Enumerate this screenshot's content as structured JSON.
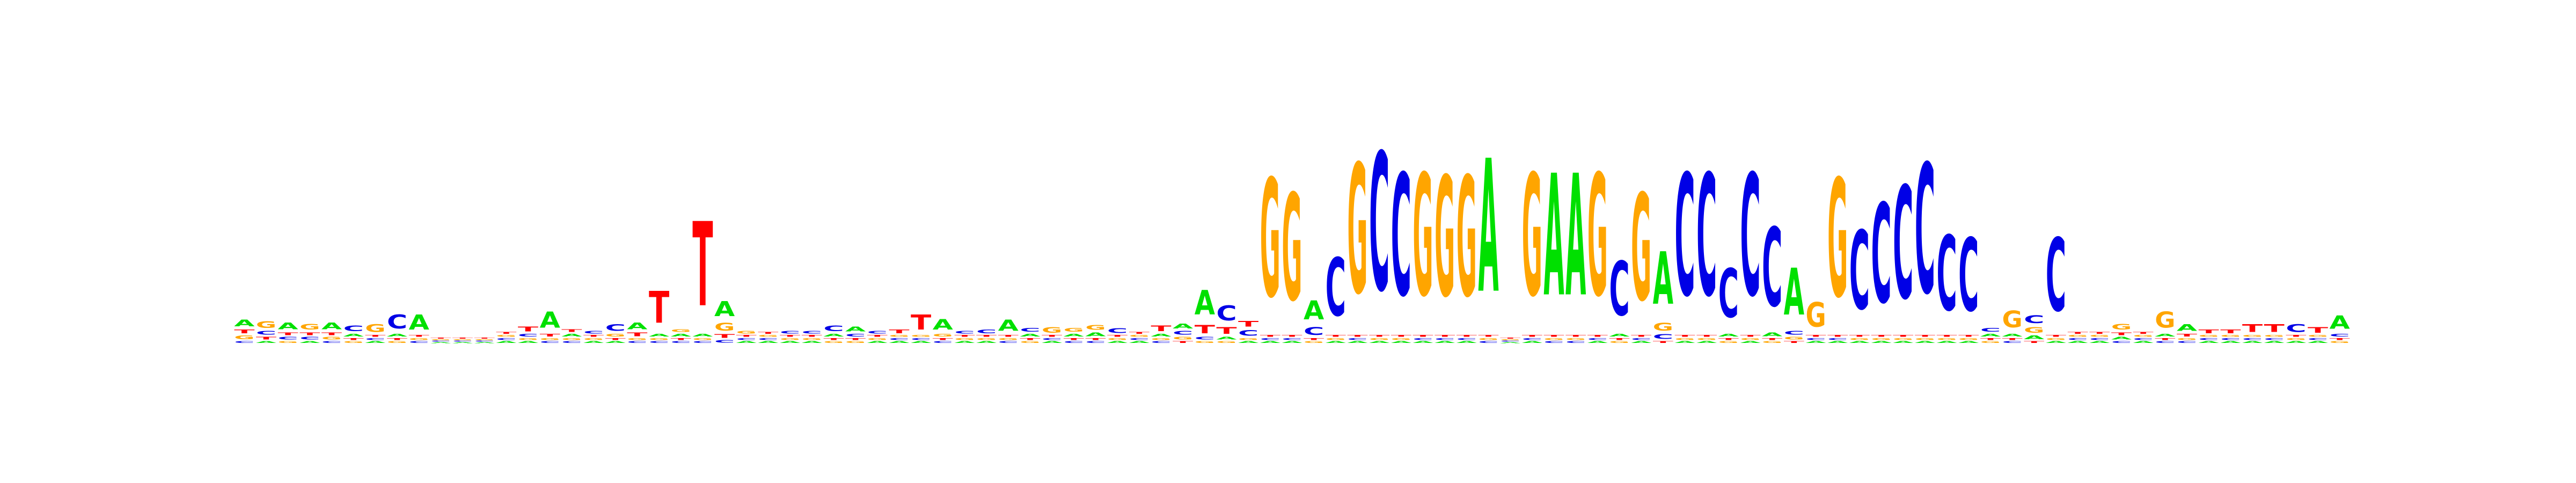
{
  "chart_data": {
    "type": "sequence-logo",
    "title": "",
    "xlabel": "",
    "ylabel": "",
    "ylim": [
      0,
      2
    ],
    "axes_visible": false,
    "grid": false,
    "legend": "none",
    "colors": {
      "A": "#00e000",
      "C": "#0000e6",
      "G": "#ffa500",
      "T": "#ff0000"
    },
    "positions": [
      {
        "A": 0.07,
        "C": 0.02,
        "G": 0.04,
        "T": 0.04
      },
      {
        "A": 0.02,
        "C": 0.04,
        "G": 0.07,
        "T": 0.03
      },
      {
        "A": 0.07,
        "C": 0.03,
        "G": 0.02,
        "T": 0.03
      },
      {
        "A": 0.02,
        "C": 0.03,
        "G": 0.06,
        "T": 0.03
      },
      {
        "A": 0.07,
        "C": 0.02,
        "G": 0.03,
        "T": 0.03
      },
      {
        "A": 0.03,
        "C": 0.06,
        "G": 0.02,
        "T": 0.02
      },
      {
        "A": 0.02,
        "C": 0.02,
        "G": 0.08,
        "T": 0.02
      },
      {
        "A": 0.03,
        "C": 0.15,
        "G": 0.02,
        "T": 0.02
      },
      {
        "A": 0.16,
        "C": 0.02,
        "G": 0.02,
        "T": 0.02
      },
      {
        "A": 0.01,
        "C": 0.01,
        "G": 0.01,
        "T": 0.01
      },
      {
        "A": 0.01,
        "C": 0.01,
        "G": 0.01,
        "T": 0.01
      },
      {
        "A": 0.01,
        "C": 0.01,
        "G": 0.01,
        "T": 0.01
      },
      {
        "A": 0.02,
        "C": 0.02,
        "G": 0.02,
        "T": 0.02
      },
      {
        "A": 0.02,
        "C": 0.03,
        "G": 0.02,
        "T": 0.05
      },
      {
        "A": 0.17,
        "C": 0.02,
        "G": 0.02,
        "T": 0.03
      },
      {
        "A": 0.03,
        "C": 0.02,
        "G": 0.02,
        "T": 0.03
      },
      {
        "A": 0.02,
        "C": 0.03,
        "G": 0.02,
        "T": 0.02
      },
      {
        "A": 0.02,
        "C": 0.07,
        "G": 0.03,
        "T": 0.02
      },
      {
        "A": 0.07,
        "C": 0.02,
        "G": 0.02,
        "T": 0.04
      },
      {
        "A": 0.03,
        "C": 0.02,
        "G": 0.02,
        "T": 0.34
      },
      {
        "A": 0.03,
        "C": 0.02,
        "G": 0.03,
        "T": 0.02
      },
      {
        "A": 0.03,
        "C": 0.02,
        "G": 0.02,
        "T": 0.9
      },
      {
        "A": 0.16,
        "C": 0.03,
        "G": 0.08,
        "T": 0.04
      },
      {
        "A": 0.02,
        "C": 0.02,
        "G": 0.03,
        "T": 0.02
      },
      {
        "A": 0.02,
        "C": 0.02,
        "G": 0.02,
        "T": 0.02
      },
      {
        "A": 0.02,
        "C": 0.03,
        "G": 0.02,
        "T": 0.02
      },
      {
        "A": 0.02,
        "C": 0.03,
        "G": 0.02,
        "T": 0.02
      },
      {
        "A": 0.03,
        "C": 0.06,
        "G": 0.02,
        "T": 0.02
      },
      {
        "A": 0.05,
        "C": 0.03,
        "G": 0.02,
        "T": 0.02
      },
      {
        "A": 0.02,
        "C": 0.03,
        "G": 0.02,
        "T": 0.02
      },
      {
        "A": 0.02,
        "C": 0.02,
        "G": 0.02,
        "T": 0.04
      },
      {
        "A": 0.02,
        "C": 0.02,
        "G": 0.02,
        "T": 0.16
      },
      {
        "A": 0.11,
        "C": 0.02,
        "G": 0.03,
        "T": 0.02
      },
      {
        "A": 0.02,
        "C": 0.03,
        "G": 0.02,
        "T": 0.02
      },
      {
        "A": 0.02,
        "C": 0.04,
        "G": 0.02,
        "T": 0.02
      },
      {
        "A": 0.12,
        "C": 0.02,
        "G": 0.02,
        "T": 0.02
      },
      {
        "A": 0.03,
        "C": 0.04,
        "G": 0.02,
        "T": 0.02
      },
      {
        "A": 0.02,
        "C": 0.02,
        "G": 0.06,
        "T": 0.02
      },
      {
        "A": 0.03,
        "C": 0.02,
        "G": 0.04,
        "T": 0.02
      },
      {
        "A": 0.04,
        "C": 0.02,
        "G": 0.05,
        "T": 0.02
      },
      {
        "A": 0.02,
        "C": 0.05,
        "G": 0.02,
        "T": 0.02
      },
      {
        "A": 0.02,
        "C": 0.02,
        "G": 0.02,
        "T": 0.02
      },
      {
        "A": 0.03,
        "C": 0.02,
        "G": 0.02,
        "T": 0.06
      },
      {
        "A": 0.05,
        "C": 0.04,
        "G": 0.03,
        "T": 0.02
      },
      {
        "A": 0.26,
        "C": 0.03,
        "G": 0.02,
        "T": 0.09
      },
      {
        "A": 0.03,
        "C": 0.16,
        "G": 0.02,
        "T": 0.07
      },
      {
        "A": 0.02,
        "C": 0.06,
        "G": 0.02,
        "T": 0.06
      },
      {
        "A": 0.02,
        "C": 0.02,
        "G": 1.26,
        "T": 0.02
      },
      {
        "A": 0.02,
        "C": 0.02,
        "G": 1.14,
        "T": 0.02
      },
      {
        "A": 0.2,
        "C": 0.08,
        "G": 0.02,
        "T": 0.02
      },
      {
        "A": 0.02,
        "C": 0.62,
        "G": 0.02,
        "T": 0.02
      },
      {
        "A": 0.02,
        "C": 0.02,
        "G": 1.38,
        "T": 0.02
      },
      {
        "A": 0.02,
        "C": 1.47,
        "G": 0.02,
        "T": 0.02
      },
      {
        "A": 0.02,
        "C": 1.3,
        "G": 0.02,
        "T": 0.02
      },
      {
        "A": 0.02,
        "C": 0.02,
        "G": 1.3,
        "T": 0.02
      },
      {
        "A": 0.02,
        "C": 0.02,
        "G": 1.28,
        "T": 0.02
      },
      {
        "A": 0.02,
        "C": 0.02,
        "G": 1.28,
        "T": 0.02
      },
      {
        "A": 1.42,
        "C": 0.02,
        "G": 0.02,
        "T": 0.02
      },
      {
        "A": 0.01,
        "C": 0.01,
        "G": 0.01,
        "T": 0.01
      },
      {
        "A": 0.02,
        "C": 0.02,
        "G": 1.3,
        "T": 0.02
      },
      {
        "A": 1.3,
        "C": 0.02,
        "G": 0.02,
        "T": 0.02
      },
      {
        "A": 1.3,
        "C": 0.02,
        "G": 0.02,
        "T": 0.02
      },
      {
        "A": 0.02,
        "C": 0.02,
        "G": 1.3,
        "T": 0.02
      },
      {
        "A": 0.03,
        "C": 0.58,
        "G": 0.02,
        "T": 0.02
      },
      {
        "A": 0.02,
        "C": 0.02,
        "G": 1.14,
        "T": 0.02
      },
      {
        "A": 0.56,
        "C": 0.05,
        "G": 0.08,
        "T": 0.02
      },
      {
        "A": 0.02,
        "C": 1.3,
        "G": 0.02,
        "T": 0.02
      },
      {
        "A": 0.02,
        "C": 1.3,
        "G": 0.02,
        "T": 0.02
      },
      {
        "A": 0.03,
        "C": 0.52,
        "G": 0.02,
        "T": 0.02
      },
      {
        "A": 0.02,
        "C": 1.3,
        "G": 0.02,
        "T": 0.02
      },
      {
        "A": 0.04,
        "C": 0.84,
        "G": 0.02,
        "T": 0.02
      },
      {
        "A": 0.5,
        "C": 0.04,
        "G": 0.03,
        "T": 0.02
      },
      {
        "A": 0.02,
        "C": 0.02,
        "G": 0.26,
        "T": 0.02
      },
      {
        "A": 0.02,
        "C": 0.02,
        "G": 1.26,
        "T": 0.02
      },
      {
        "A": 0.02,
        "C": 0.84,
        "G": 0.02,
        "T": 0.02
      },
      {
        "A": 0.02,
        "C": 1.06,
        "G": 0.02,
        "T": 0.02
      },
      {
        "A": 0.02,
        "C": 1.2,
        "G": 0.02,
        "T": 0.02
      },
      {
        "A": 0.02,
        "C": 1.38,
        "G": 0.02,
        "T": 0.02
      },
      {
        "A": 0.02,
        "C": 0.8,
        "G": 0.02,
        "T": 0.02
      },
      {
        "A": 0.02,
        "C": 0.78,
        "G": 0.02,
        "T": 0.02
      },
      {
        "A": 0.03,
        "C": 0.04,
        "G": 0.02,
        "T": 0.02
      },
      {
        "A": 0.03,
        "C": 0.02,
        "G": 0.18,
        "T": 0.02
      },
      {
        "A": 0.04,
        "C": 0.08,
        "G": 0.06,
        "T": 0.02
      },
      {
        "A": 0.02,
        "C": 0.78,
        "G": 0.02,
        "T": 0.02
      },
      {
        "A": 0.02,
        "C": 0.02,
        "G": 0.02,
        "T": 0.02
      },
      {
        "A": 0.02,
        "C": 0.02,
        "G": 0.02,
        "T": 0.02
      },
      {
        "A": 0.03,
        "C": 0.02,
        "G": 0.06,
        "T": 0.03
      },
      {
        "A": 0.02,
        "C": 0.02,
        "G": 0.02,
        "T": 0.02
      },
      {
        "A": 0.03,
        "C": 0.02,
        "G": 0.17,
        "T": 0.02
      },
      {
        "A": 0.07,
        "C": 0.02,
        "G": 0.02,
        "T": 0.03
      },
      {
        "A": 0.02,
        "C": 0.02,
        "G": 0.02,
        "T": 0.04
      },
      {
        "A": 0.02,
        "C": 0.02,
        "G": 0.02,
        "T": 0.04
      },
      {
        "A": 0.02,
        "C": 0.02,
        "G": 0.02,
        "T": 0.08
      },
      {
        "A": 0.02,
        "C": 0.02,
        "G": 0.02,
        "T": 0.08
      },
      {
        "A": 0.02,
        "C": 0.08,
        "G": 0.02,
        "T": 0.02
      },
      {
        "A": 0.02,
        "C": 0.02,
        "G": 0.02,
        "T": 0.06
      },
      {
        "A": 0.14,
        "C": 0.03,
        "G": 0.02,
        "T": 0.02
      }
    ]
  }
}
